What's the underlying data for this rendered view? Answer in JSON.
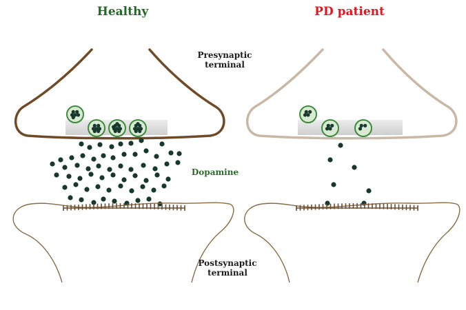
{
  "titles": {
    "healthy": "Healthy",
    "pd": "PD patient"
  },
  "labels": {
    "presynaptic": "Presynaptic terminal",
    "dopamine": "Dopamine",
    "postsynaptic": "Postsynaptic terminal"
  },
  "colors": {
    "healthy_title": "#1f6b1f",
    "pd_title": "#e8141e",
    "healthy_membrane": "#6e4a27",
    "pd_membrane": "#c9b8a6",
    "post_membrane": "#8a6a45",
    "vesicle_fill": "#d9ead3",
    "vesicle_stroke": "#3d8a3d",
    "dopamine": "#17382b",
    "release_zone": "#dcdcdc",
    "receptor": "#6b4a2e",
    "label_dopamine": "#2b6a2b"
  }
}
